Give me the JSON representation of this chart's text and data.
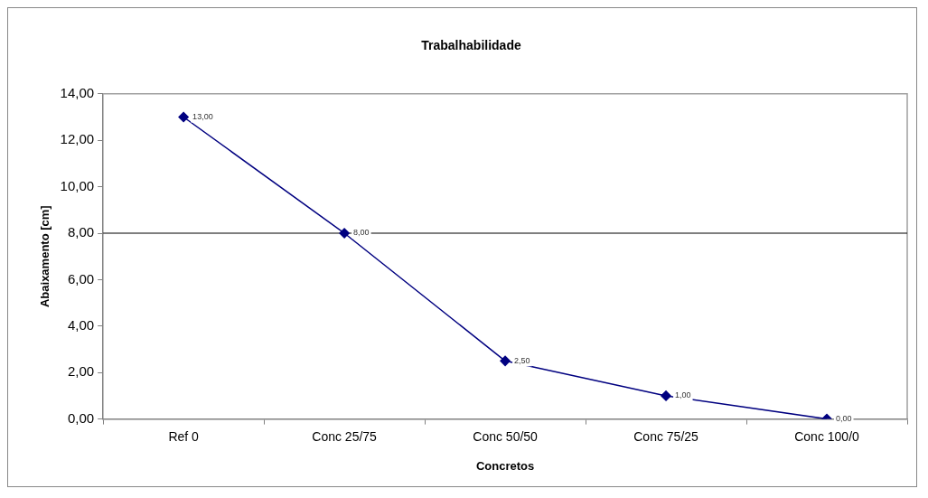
{
  "chart_data": {
    "type": "line",
    "title": "Trabalhabilidade",
    "xlabel": "Concretos",
    "ylabel": "Abaixamento [cm]",
    "categories": [
      "Ref 0",
      "Conc 25/75",
      "Conc 50/50",
      "Conc 75/25",
      "Conc 100/0"
    ],
    "series": [
      {
        "color": "#000080",
        "values": [
          13,
          8,
          2.5,
          1,
          0
        ],
        "value_labels": [
          "13,00",
          "8,00",
          "2,50",
          "1,00",
          "0,00"
        ]
      }
    ],
    "ylim": [
      0,
      14
    ],
    "yticks": [
      {
        "value": 0,
        "label": "0,00"
      },
      {
        "value": 2,
        "label": "2,00"
      },
      {
        "value": 4,
        "label": "4,00"
      },
      {
        "value": 6,
        "label": "6,00"
      },
      {
        "value": 8,
        "label": "8,00"
      },
      {
        "value": 10,
        "label": "10,00"
      },
      {
        "value": 12,
        "label": "12,00"
      },
      {
        "value": 14,
        "label": "14,00"
      }
    ],
    "ref_lines": [
      {
        "axis": "y",
        "value": 8,
        "color": "#000000"
      }
    ],
    "grid": false,
    "legend": false,
    "marker": "diamond",
    "line_style": "solid"
  }
}
